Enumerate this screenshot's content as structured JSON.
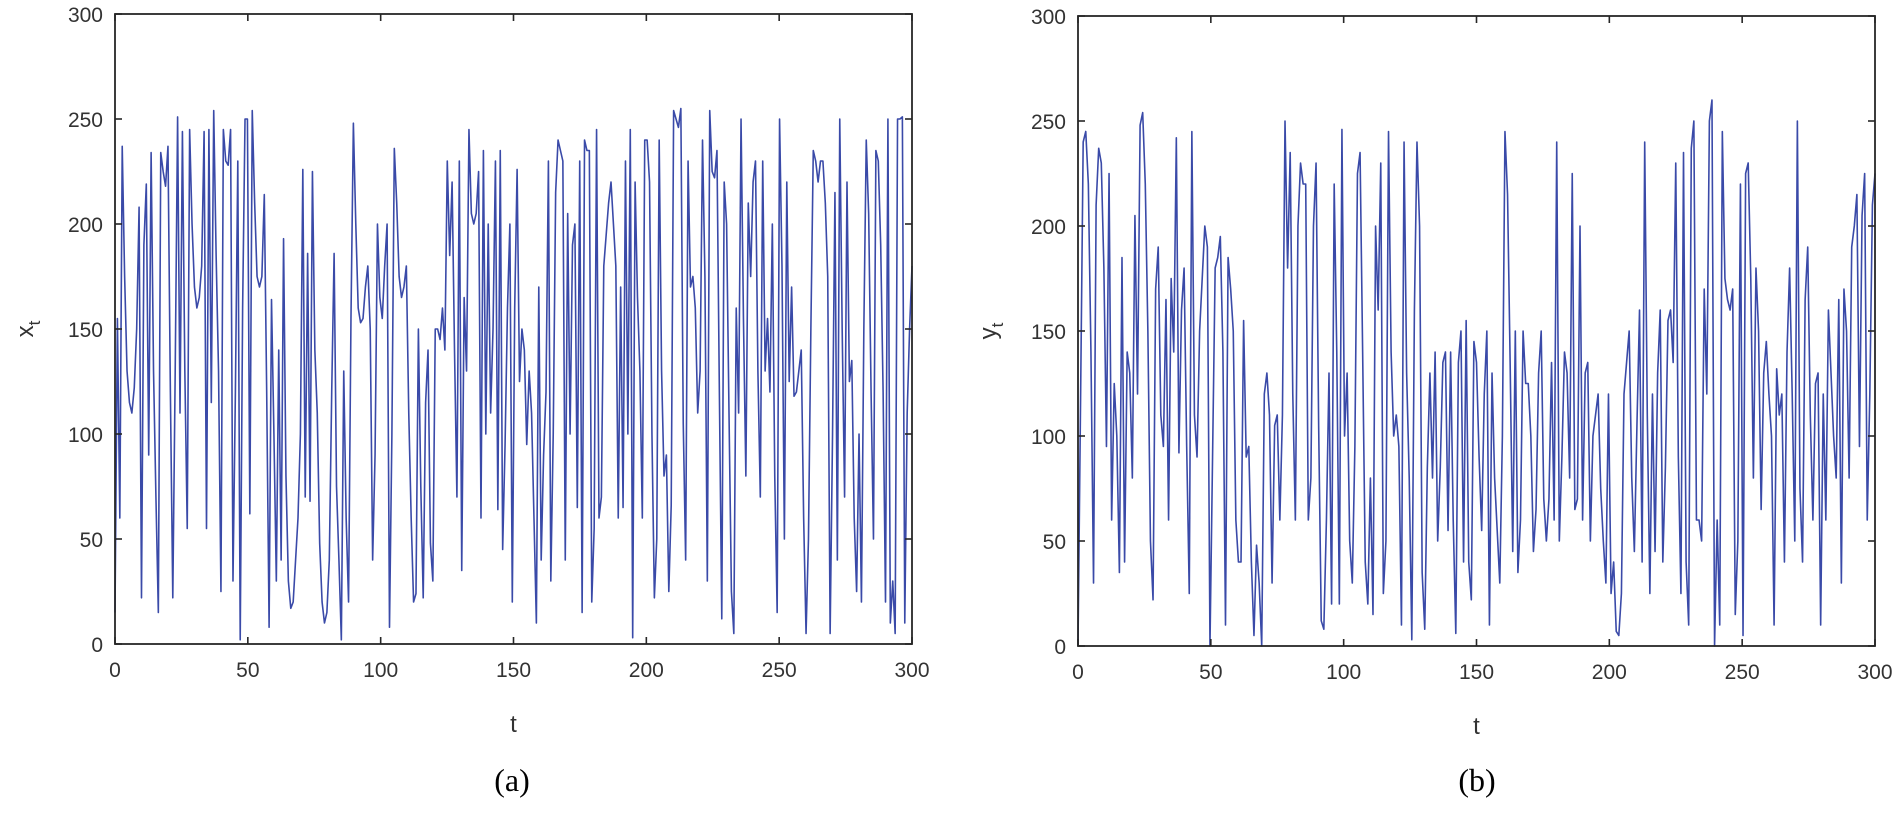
{
  "chart_data": [
    {
      "type": "line",
      "panel": "a",
      "caption": "(a)",
      "title": "",
      "xlabel": "t",
      "ylabel": "x",
      "ylabel_subscript": "t",
      "xlim": [
        0,
        300
      ],
      "ylim": [
        0,
        300
      ],
      "xticks": [
        0,
        50,
        100,
        150,
        200,
        250,
        300
      ],
      "yticks": [
        0,
        50,
        100,
        150,
        200,
        250,
        300
      ],
      "grid": false,
      "line_color": "#3a4aa8",
      "series": [
        {
          "name": "x_t",
          "values": [
            15,
            155,
            60,
            237,
            175,
            130,
            115,
            110,
            122,
            150,
            208,
            22,
            190,
            219,
            90,
            234,
            130,
            70,
            15,
            234,
            225,
            218,
            237,
            120,
            22,
            130,
            251,
            110,
            244,
            130,
            55,
            245,
            200,
            170,
            160,
            165,
            180,
            244,
            55,
            245,
            115,
            254,
            185,
            130,
            25,
            245,
            230,
            228,
            245,
            30,
            120,
            230,
            2,
            160,
            250,
            250,
            62,
            254,
            210,
            175,
            170,
            175,
            214,
            120,
            8,
            164,
            100,
            30,
            140,
            40,
            193,
            80,
            30,
            17,
            20,
            40,
            60,
            100,
            226,
            70,
            186,
            68,
            225,
            140,
            110,
            48,
            20,
            10,
            15,
            40,
            120,
            186,
            75,
            40,
            2,
            130,
            60,
            20,
            155,
            248,
            200,
            160,
            153,
            155,
            170,
            180,
            150,
            40,
            90,
            200,
            165,
            155,
            180,
            200,
            8,
            100,
            236,
            210,
            175,
            165,
            170,
            180,
            110,
            60,
            20,
            24,
            150,
            75,
            22,
            115,
            140,
            48,
            30,
            150,
            150,
            145,
            160,
            140,
            230,
            185,
            220,
            140,
            70,
            230,
            35,
            165,
            130,
            245,
            205,
            200,
            205,
            225,
            60,
            235,
            100,
            200,
            110,
            150,
            230,
            64,
            235,
            45,
            95,
            160,
            200,
            20,
            160,
            226,
            125,
            150,
            140,
            95,
            130,
            110,
            60,
            10,
            170,
            40,
            90,
            120,
            230,
            30,
            100,
            215,
            240,
            235,
            230,
            40,
            205,
            100,
            190,
            200,
            65,
            230,
            15,
            240,
            235,
            235,
            20,
            55,
            245,
            60,
            70,
            180,
            195,
            210,
            220,
            200,
            180,
            60,
            170,
            65,
            230,
            100,
            245,
            3,
            220,
            165,
            130,
            60,
            240,
            240,
            220,
            100,
            22,
            50,
            240,
            130,
            80,
            90,
            25,
            66,
            254,
            250,
            246,
            255,
            105,
            40,
            230,
            170,
            175,
            160,
            110,
            130,
            240,
            175,
            30,
            254,
            225,
            222,
            235,
            120,
            12,
            220,
            200,
            110,
            25,
            5,
            160,
            110,
            250,
            155,
            80,
            210,
            175,
            220,
            230,
            130,
            70,
            230,
            130,
            155,
            120,
            200,
            80,
            15,
            250,
            180,
            50,
            220,
            125,
            170,
            118,
            120,
            130,
            140,
            60,
            5,
            50,
            150,
            235,
            230,
            220,
            230,
            230,
            210,
            175,
            5,
            100,
            215,
            40,
            250,
            150,
            70,
            220,
            125,
            135,
            60,
            25,
            100,
            20,
            150,
            240,
            205,
            120,
            50,
            235,
            230,
            190,
            120,
            20,
            250,
            10,
            30,
            5,
            250,
            250,
            251,
            10,
            110,
            150,
            180
          ]
        }
      ]
    },
    {
      "type": "line",
      "panel": "b",
      "caption": "(b)",
      "title": "",
      "xlabel": "t",
      "ylabel": "y",
      "ylabel_subscript": "t",
      "xlim": [
        0,
        300
      ],
      "ylim": [
        0,
        300
      ],
      "xticks": [
        0,
        50,
        100,
        150,
        200,
        250,
        300
      ],
      "yticks": [
        0,
        50,
        100,
        150,
        200,
        250,
        300
      ],
      "grid": false,
      "line_color": "#3a4aa8",
      "series": [
        {
          "name": "y_t",
          "values": [
            0,
            118,
            240,
            245,
            220,
            140,
            30,
            210,
            237,
            230,
            180,
            95,
            225,
            60,
            125,
            100,
            35,
            185,
            40,
            140,
            130,
            80,
            205,
            120,
            248,
            254,
            220,
            150,
            50,
            22,
            170,
            190,
            110,
            95,
            165,
            60,
            175,
            140,
            242,
            92,
            160,
            180,
            95,
            25,
            245,
            110,
            90,
            150,
            175,
            200,
            190,
            0,
            90,
            180,
            185,
            195,
            140,
            10,
            185,
            170,
            150,
            60,
            40,
            40,
            155,
            90,
            95,
            40,
            5,
            48,
            30,
            0,
            120,
            130,
            110,
            30,
            105,
            110,
            60,
            110,
            250,
            180,
            235,
            120,
            60,
            200,
            230,
            220,
            220,
            60,
            80,
            200,
            230,
            105,
            12,
            8,
            60,
            130,
            20,
            220,
            140,
            20,
            246,
            100,
            130,
            50,
            30,
            95,
            225,
            235,
            140,
            40,
            20,
            80,
            15,
            200,
            160,
            230,
            25,
            50,
            245,
            140,
            100,
            110,
            95,
            10,
            240,
            130,
            80,
            3,
            160,
            240,
            200,
            35,
            8,
            85,
            130,
            80,
            140,
            50,
            85,
            135,
            140,
            55,
            140,
            60,
            6,
            135,
            150,
            40,
            155,
            40,
            22,
            145,
            135,
            90,
            55,
            120,
            150,
            10,
            130,
            80,
            55,
            30,
            100,
            245,
            215,
            135,
            45,
            150,
            35,
            60,
            150,
            125,
            125,
            100,
            45,
            65,
            130,
            150,
            70,
            50,
            70,
            135,
            60,
            240,
            50,
            90,
            140,
            130,
            80,
            225,
            65,
            70,
            200,
            60,
            130,
            135,
            50,
            100,
            110,
            120,
            75,
            50,
            30,
            120,
            25,
            40,
            7,
            5,
            25,
            120,
            135,
            150,
            80,
            45,
            105,
            160,
            40,
            240,
            110,
            25,
            120,
            45,
            130,
            160,
            40,
            85,
            155,
            160,
            135,
            230,
            90,
            25,
            235,
            40,
            10,
            237,
            250,
            60,
            60,
            50,
            170,
            120,
            250,
            260,
            0,
            60,
            10,
            245,
            175,
            165,
            160,
            170,
            15,
            50,
            220,
            5,
            225,
            230,
            175,
            80,
            180,
            150,
            65,
            130,
            145,
            120,
            100,
            10,
            132,
            110,
            120,
            40,
            140,
            180,
            120,
            50,
            250,
            75,
            40,
            165,
            190,
            110,
            60,
            125,
            130,
            10,
            120,
            60,
            160,
            130,
            100,
            80,
            165,
            30,
            170,
            150,
            80,
            190,
            200,
            215,
            95,
            205,
            225,
            60,
            120,
            210,
            225
          ]
        }
      ]
    }
  ],
  "panels": {
    "a": {
      "caption": "(a)",
      "xlabel": "t",
      "ylabel_main": "x",
      "ylabel_sub": "t"
    },
    "b": {
      "caption": "(b)",
      "xlabel": "t",
      "ylabel_main": "y",
      "ylabel_sub": "t"
    }
  }
}
